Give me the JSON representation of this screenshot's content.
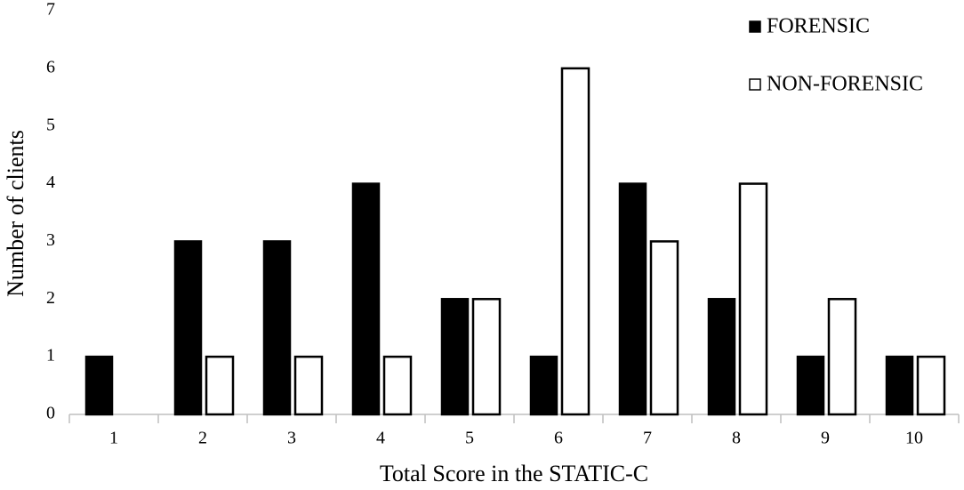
{
  "chart_data": {
    "type": "bar",
    "x_label": "Total Score in the STATIC-C",
    "y_label": "Number of clients",
    "categories": [
      "1",
      "2",
      "3",
      "4",
      "5",
      "6",
      "7",
      "8",
      "9",
      "10"
    ],
    "series": [
      {
        "name": "FORENSIC",
        "color": "#000000",
        "values": [
          1,
          3,
          3,
          4,
          2,
          1,
          4,
          2,
          1,
          1
        ]
      },
      {
        "name": "NON-FORENSIC",
        "color": "#ffffff",
        "values": [
          0,
          1,
          1,
          1,
          2,
          6,
          3,
          4,
          2,
          1
        ]
      }
    ],
    "ylim": [
      0,
      7
    ],
    "yticks": [
      0,
      1,
      2,
      3,
      4,
      5,
      6,
      7
    ],
    "grid": false,
    "legend": "upper right"
  }
}
